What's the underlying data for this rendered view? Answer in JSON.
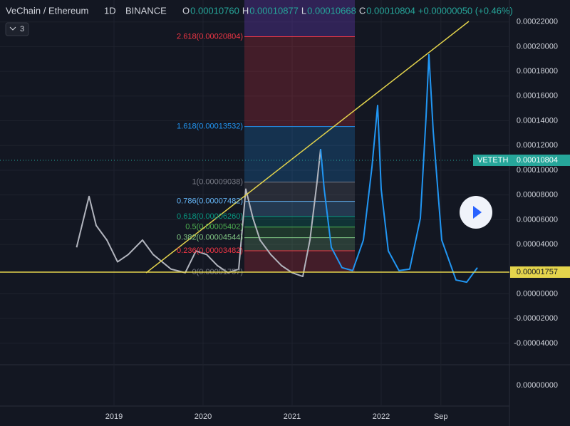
{
  "header": {
    "symbol": "VeChain / Ethereum",
    "interval": "1D",
    "exchange": "BINANCE",
    "ohlc": [
      {
        "key": "O",
        "value": "0.00010760"
      },
      {
        "key": "H",
        "value": "0.00010877"
      },
      {
        "key": "L",
        "value": "0.00010668"
      },
      {
        "key": "C",
        "value": "0.00010804"
      }
    ],
    "change": "+0.00000050 (+0.46%)",
    "indicator_count": "3"
  },
  "chart_data": {
    "type": "line",
    "xlim": [
      2017.72,
      2023.44
    ],
    "ylim": [
      -5.62e-05,
      0.0002377
    ],
    "xticks": [
      {
        "value": 2019,
        "label": "2019"
      },
      {
        "value": 2020,
        "label": "2020"
      },
      {
        "value": 2021,
        "label": "2021"
      },
      {
        "value": 2022,
        "label": "2022"
      },
      {
        "value": 2022.67,
        "label": "Sep"
      }
    ],
    "yticks": [
      {
        "value": 0.00022,
        "label": "0.00022000"
      },
      {
        "value": 0.0002,
        "label": "0.00020000"
      },
      {
        "value": 0.00018,
        "label": "0.00018000"
      },
      {
        "value": 0.00016,
        "label": "0.00016000"
      },
      {
        "value": 0.00014,
        "label": "0.00014000"
      },
      {
        "value": 0.00012,
        "label": "0.00012000"
      },
      {
        "value": 0.0001,
        "label": "0.00010000"
      },
      {
        "value": 8e-05,
        "label": "0.00008000"
      },
      {
        "value": 6e-05,
        "label": "0.00006000"
      },
      {
        "value": 4e-05,
        "label": "0.00004000"
      },
      {
        "value": 0,
        "label": "0.00000000"
      },
      {
        "value": -2e-05,
        "label": "-0.00002000"
      },
      {
        "value": -4e-05,
        "label": "-0.00004000"
      }
    ],
    "series": [
      {
        "color": "#b2b5be",
        "x": [
          2018.58,
          2018.66,
          2018.72,
          2018.8,
          2018.92,
          2019.04,
          2019.16,
          2019.32,
          2019.44,
          2019.64,
          2019.8,
          2019.92,
          2020.04,
          2020.16,
          2020.28,
          2020.4,
          2020.48,
          2020.56,
          2020.64,
          2020.76,
          2020.88,
          2021.0,
          2021.12,
          2021.2,
          2021.28,
          2021.32
        ],
        "values": [
          3.76e-05,
          6.12e-05,
          7.88e-05,
          5.53e-05,
          4.35e-05,
          2.59e-05,
          3.18e-05,
          4.35e-05,
          3.18e-05,
          2e-05,
          1.71e-05,
          3.47e-05,
          3.18e-05,
          2.29e-05,
          1.71e-05,
          2e-05,
          8.47e-05,
          6.12e-05,
          4.35e-05,
          3.18e-05,
          2.29e-05,
          1.71e-05,
          1.41e-05,
          4.35e-05,
          9.06e-05,
          0.0001171
        ]
      },
      {
        "color": "#2196f3",
        "x": [
          2021.32,
          2021.36,
          2021.44,
          2021.56,
          2021.68,
          2021.8,
          2021.896,
          2021.96,
          2022.0,
          2022.08,
          2022.2,
          2022.32,
          2022.44,
          2022.504,
          2022.536,
          2022.584,
          2022.68,
          2022.84,
          2022.96,
          2023.08
        ],
        "values": [
          0.0001171,
          8.47e-05,
          3.76e-05,
          2.12e-05,
          1.88e-05,
          4.35e-05,
          0.0001024,
          0.0001524,
          8.47e-05,
          3.47e-05,
          1.88e-05,
          2e-05,
          6.12e-05,
          0.0001435,
          0.0001935,
          0.0001318,
          4.35e-05,
          1.12e-05,
          9.4e-06,
          2.12e-05
        ]
      }
    ],
    "fib_levels": [
      {
        "value": 0.00020804,
        "label": "2.618(0.00020804)",
        "color": "#f23645"
      },
      {
        "value": 0.00013532,
        "label": "1.618(0.00013532)",
        "color": "#2196f3"
      },
      {
        "value": 9.038e-05,
        "label": "1(0.00009038)",
        "color": "#787b86"
      },
      {
        "value": 7.482e-05,
        "label": "0.786(0.00007482)",
        "color": "#64b5f6"
      },
      {
        "value": 6.26e-05,
        "label": "0.618(0.00006260)",
        "color": "#089981"
      },
      {
        "value": 5.402e-05,
        "label": "0.5(0.00005402)",
        "color": "#4caf50"
      },
      {
        "value": 4.544e-05,
        "label": "0.382(0.00004544)",
        "color": "#81c784"
      },
      {
        "value": 3.482e-05,
        "label": "0.236(0.00003482)",
        "color": "#f23645"
      },
      {
        "value": 1.757e-05,
        "label": "0(0.00001757)",
        "color": "#787b86"
      }
    ],
    "last_price": {
      "symbol": "VETETH",
      "price": {
        "value": 0.00010804,
        "label": "0.00010804"
      },
      "color": "#26a69a"
    },
    "support": {
      "value": 1.757e-05,
      "label": "0.00001757",
      "color": "#e4d44c"
    },
    "lower_pane_tick": {
      "value": 0,
      "label": "0.00000000"
    }
  }
}
